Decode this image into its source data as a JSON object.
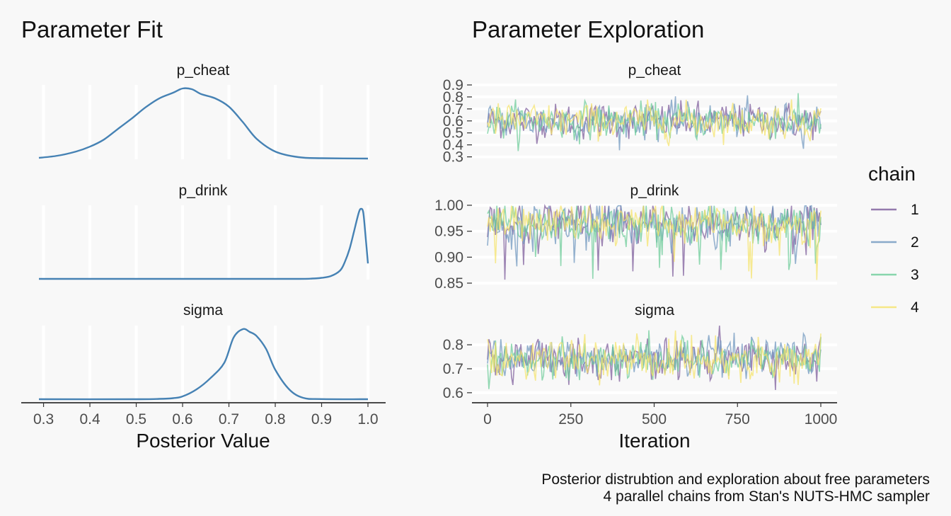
{
  "chart_data": [
    {
      "type": "area",
      "title": "Parameter Fit",
      "xlabel": "Posterior Value",
      "ylabel": "",
      "xlim": [
        0.28,
        1.0
      ],
      "x_ticks": [
        "0.3",
        "0.4",
        "0.5",
        "0.6",
        "0.7",
        "0.8",
        "0.9",
        "1.0"
      ],
      "grid": "vertical only",
      "line_color": "#4682B4",
      "facets": [
        {
          "name": "p_cheat",
          "x": [
            0.29,
            0.33,
            0.37,
            0.4,
            0.43,
            0.46,
            0.49,
            0.52,
            0.55,
            0.58,
            0.6,
            0.62,
            0.64,
            0.67,
            0.7,
            0.73,
            0.76,
            0.8,
            0.85,
            0.9,
            1.0
          ],
          "y": [
            0.01,
            0.04,
            0.1,
            0.17,
            0.27,
            0.42,
            0.57,
            0.73,
            0.86,
            0.94,
            1.0,
            0.99,
            0.92,
            0.86,
            0.74,
            0.52,
            0.28,
            0.1,
            0.02,
            0.005,
            0.0
          ]
        },
        {
          "name": "p_drink",
          "x": [
            0.29,
            0.5,
            0.7,
            0.85,
            0.88,
            0.9,
            0.92,
            0.94,
            0.95,
            0.96,
            0.97,
            0.98,
            0.985,
            0.99,
            0.995,
            1.0
          ],
          "y": [
            0.0,
            0.0,
            0.0,
            0.0,
            0.005,
            0.015,
            0.04,
            0.12,
            0.24,
            0.42,
            0.68,
            0.94,
            1.0,
            0.94,
            0.6,
            0.22
          ]
        },
        {
          "name": "sigma",
          "x": [
            0.29,
            0.5,
            0.55,
            0.58,
            0.6,
            0.63,
            0.66,
            0.69,
            0.71,
            0.73,
            0.745,
            0.76,
            0.78,
            0.8,
            0.83,
            0.86,
            0.9,
            1.0
          ],
          "y": [
            0.0,
            0.0,
            0.005,
            0.015,
            0.04,
            0.14,
            0.3,
            0.52,
            0.88,
            1.0,
            0.96,
            0.9,
            0.72,
            0.42,
            0.14,
            0.02,
            0.002,
            0.0
          ]
        }
      ]
    },
    {
      "type": "line",
      "title": "Parameter Exploration",
      "xlabel": "Iteration",
      "ylabel": "",
      "xlim": [
        0,
        1000
      ],
      "x_ticks": [
        "0",
        "250",
        "500",
        "750",
        "1000"
      ],
      "grid": "horizontal only",
      "legend": {
        "title": "chain",
        "position": "right",
        "entries": [
          {
            "label": "1",
            "color": "#7B5A9A"
          },
          {
            "label": "2",
            "color": "#6E96BE"
          },
          {
            "label": "3",
            "color": "#6CCC98"
          },
          {
            "label": "4",
            "color": "#F5E36A"
          }
        ]
      },
      "facets": [
        {
          "name": "p_cheat",
          "mean": 0.6,
          "sd": 0.08,
          "ylim": [
            0.28,
            0.9
          ],
          "y_ticks": [
            "0.3",
            "0.4",
            "0.5",
            "0.6",
            "0.7",
            "0.8",
            "0.9"
          ],
          "y_tick_values": [
            0.3,
            0.4,
            0.5,
            0.6,
            0.7,
            0.8,
            0.9
          ]
        },
        {
          "name": "p_drink",
          "mean": 0.965,
          "sd": 0.022,
          "ylim": [
            0.85,
            1.0
          ],
          "y_ticks": [
            "1.00",
            "0.95",
            "0.90",
            "0.85"
          ],
          "y_tick_values": [
            1.0,
            0.95,
            0.9,
            0.85
          ]
        },
        {
          "name": "sigma",
          "mean": 0.74,
          "sd": 0.045,
          "ylim": [
            0.57,
            0.88
          ],
          "y_ticks": [
            "0.8",
            "0.7",
            "0.6"
          ],
          "y_tick_values": [
            0.8,
            0.7,
            0.6
          ]
        }
      ]
    }
  ],
  "caption": {
    "line1": "Posterior distrubtion and exploration about free parameters",
    "line2": "4 parallel chains from Stan's NUTS-HMC sampler"
  }
}
